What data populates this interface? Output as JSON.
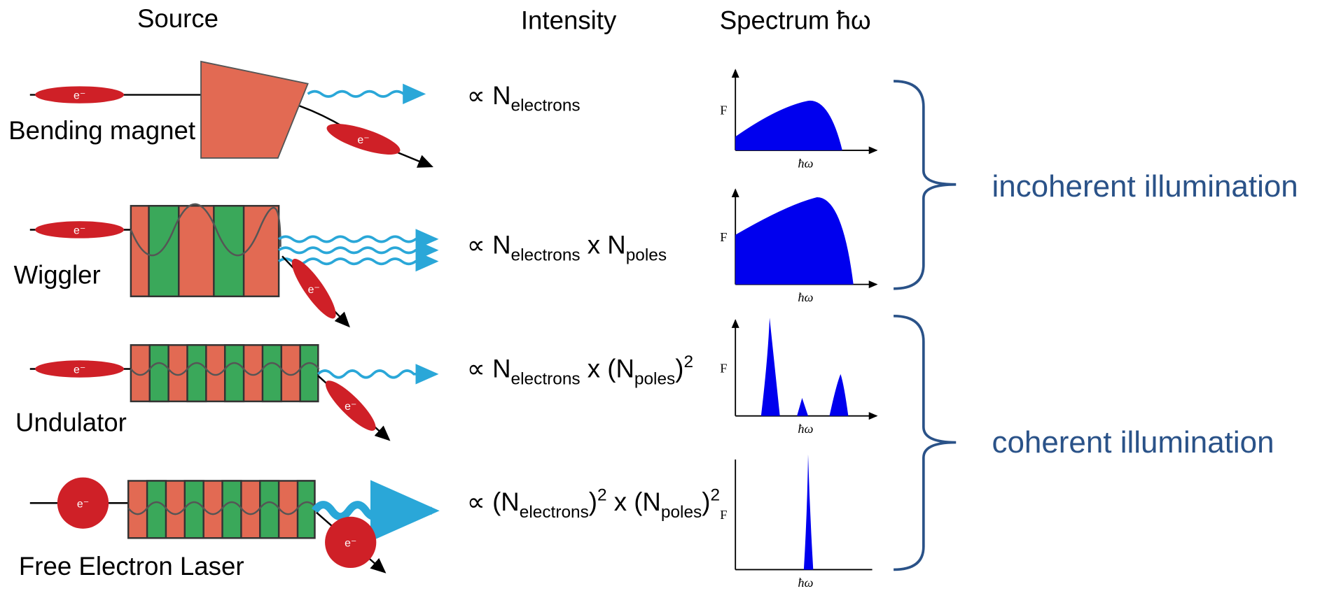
{
  "header": {
    "source": "Source",
    "intensity": "Intensity",
    "spectrum": "Spectrum ħω"
  },
  "electron_label": "e⁻",
  "rows": [
    {
      "source": "Bending magnet",
      "formula": [
        {
          "text": "∝ N",
          "style": "normal"
        },
        {
          "text": "electrons",
          "style": "sub"
        }
      ],
      "axis_y": "F",
      "axis_x": "ħω"
    },
    {
      "source": "Wiggler",
      "formula": [
        {
          "text": "∝ N",
          "style": "normal"
        },
        {
          "text": "electrons",
          "style": "sub"
        },
        {
          "text": " x N",
          "style": "normal"
        },
        {
          "text": "poles",
          "style": "sub"
        }
      ],
      "axis_y": "F",
      "axis_x": "ħω"
    },
    {
      "source": "Undulator",
      "formula": [
        {
          "text": "∝ N",
          "style": "normal"
        },
        {
          "text": "electrons",
          "style": "sub"
        },
        {
          "text": " x (N",
          "style": "normal"
        },
        {
          "text": "poles",
          "style": "sub"
        },
        {
          "text": ")",
          "style": "normal"
        },
        {
          "text": "2",
          "style": "sup"
        }
      ],
      "axis_y": "F",
      "axis_x": "ħω"
    },
    {
      "source": "Free Electron Laser",
      "formula": [
        {
          "text": "∝ (N",
          "style": "normal"
        },
        {
          "text": "electrons",
          "style": "sub"
        },
        {
          "text": ")",
          "style": "normal"
        },
        {
          "text": "2",
          "style": "sup"
        },
        {
          "text": " x (N",
          "style": "normal"
        },
        {
          "text": "poles",
          "style": "sub"
        },
        {
          "text": ")",
          "style": "normal"
        },
        {
          "text": "2",
          "style": "sup"
        }
      ],
      "axis_y": "F",
      "axis_x": "ħω"
    }
  ],
  "groups": {
    "incoherent": "incoherent illumination",
    "coherent": "coherent illumination"
  }
}
